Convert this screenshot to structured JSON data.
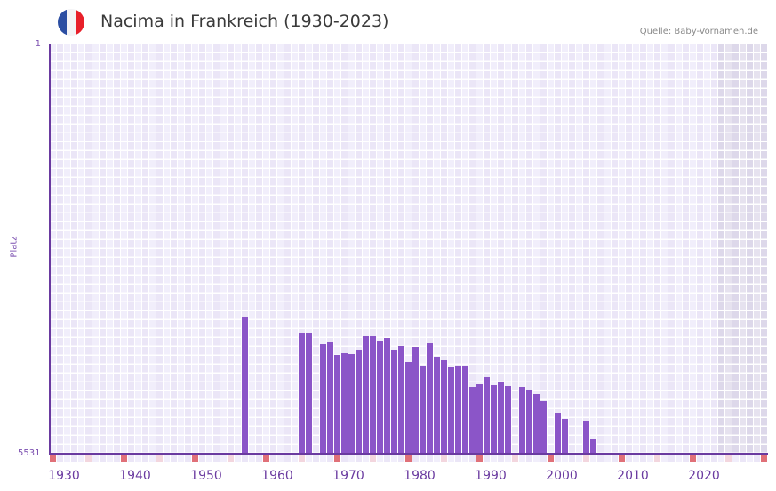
{
  "header": {
    "title": "Nacima in Frankreich (1930-2023)",
    "source": "Quelle: Baby-Vornamen.de",
    "flag": {
      "colors": [
        "#2b4ea2",
        "#f4f4f6",
        "#e8202a"
      ],
      "icon": "france-flag-icon"
    }
  },
  "colors": {
    "bar": "#8b55c8",
    "axis": "#6a3aa0",
    "grid_a": "#f1eefb",
    "grid_b": "#ebe6f7",
    "future_a": "#e6e2ef",
    "future_b": "#ddd8ea",
    "marker_decade": "#e07078",
    "marker_half": "#f3d6de"
  },
  "chart_data": {
    "type": "bar",
    "title": "Nacima in Frankreich (1930-2023)",
    "xlabel": "",
    "ylabel": "Platz",
    "y_inverted": true,
    "ylim": [
      1,
      5531
    ],
    "xlim": [
      1930,
      2030
    ],
    "y_tick_labels": [
      "1",
      "5531"
    ],
    "x_tick_labels": [
      "1930",
      "1940",
      "1950",
      "1960",
      "1970",
      "1980",
      "1990",
      "2000",
      "2010",
      "2020"
    ],
    "grid": true,
    "shaded_future_from": 2024,
    "x": [
      1957,
      1965,
      1966,
      1968,
      1969,
      1970,
      1971,
      1972,
      1973,
      1974,
      1975,
      1976,
      1977,
      1978,
      1979,
      1980,
      1981,
      1982,
      1983,
      1984,
      1985,
      1986,
      1987,
      1988,
      1989,
      1990,
      1991,
      1992,
      1993,
      1994,
      1996,
      1997,
      1998,
      1999,
      2001,
      2002,
      2005,
      2006
    ],
    "values": [
      3679,
      3896,
      3896,
      4052,
      4028,
      4196,
      4172,
      4184,
      4124,
      3944,
      3944,
      4004,
      3968,
      4136,
      4076,
      4293,
      4088,
      4353,
      4040,
      4220,
      4268,
      4365,
      4341,
      4341,
      4629,
      4593,
      4497,
      4605,
      4569,
      4617,
      4629,
      4677,
      4725,
      4821,
      4977,
      5061,
      5085,
      5325
    ]
  }
}
